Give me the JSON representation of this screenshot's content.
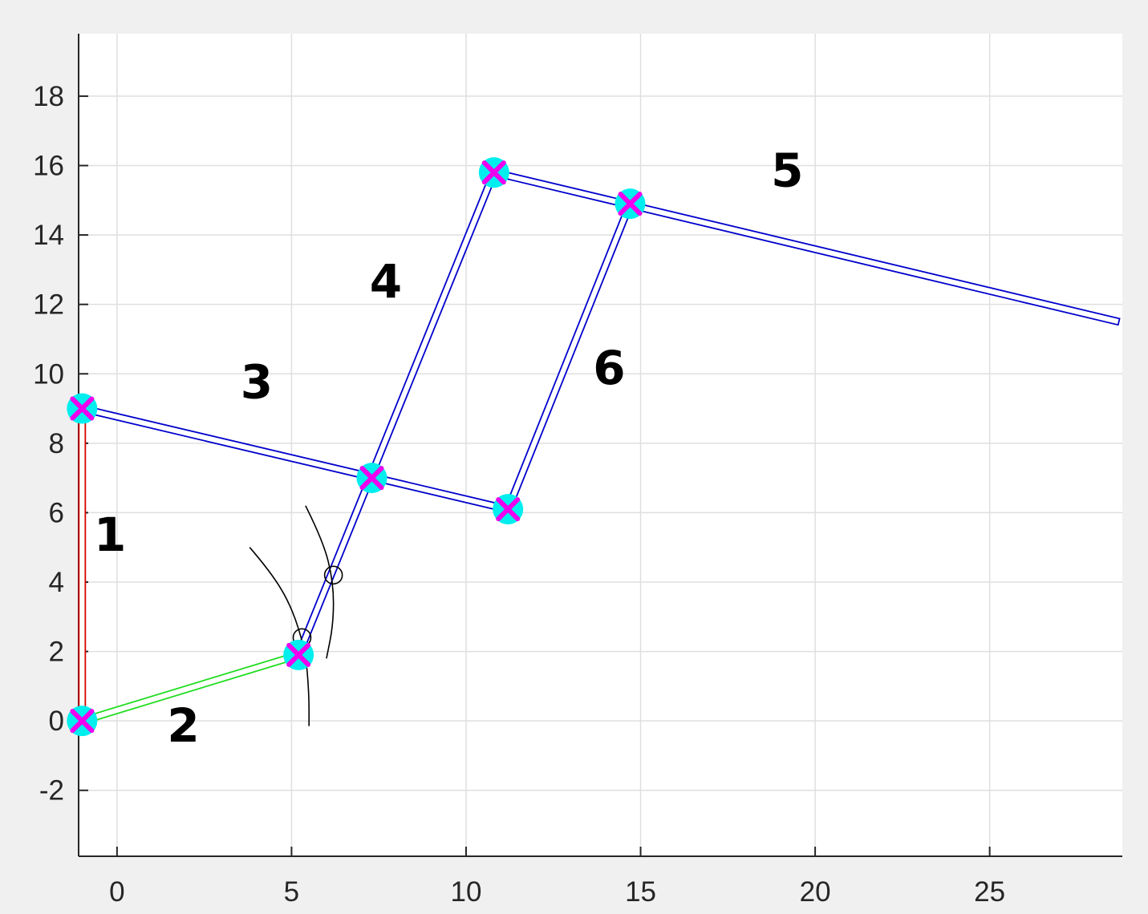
{
  "chart_data": {
    "type": "scatter",
    "title": "",
    "xlabel": "",
    "ylabel": "",
    "xlim": [
      -1.1,
      28.8
    ],
    "ylim": [
      -3.9,
      19.8
    ],
    "x_ticks": [
      0,
      5,
      10,
      15,
      20,
      25
    ],
    "y_ticks": [
      -2,
      0,
      2,
      4,
      6,
      8,
      10,
      12,
      14,
      16,
      18
    ],
    "grid": true,
    "joints": [
      {
        "x": -1.0,
        "y": 0.0
      },
      {
        "x": -1.0,
        "y": 9.0
      },
      {
        "x": 5.2,
        "y": 1.9
      },
      {
        "x": 7.3,
        "y": 7.0
      },
      {
        "x": 11.2,
        "y": 6.1
      },
      {
        "x": 10.8,
        "y": 15.8
      },
      {
        "x": 14.7,
        "y": 14.9
      }
    ],
    "links": [
      {
        "label": "1",
        "color": "#d40000",
        "from": [
          -1.0,
          0.0
        ],
        "to": [
          -1.0,
          9.0
        ],
        "label_at": [
          -0.2,
          4.9
        ]
      },
      {
        "label": "2",
        "color": "#22dd22",
        "from": [
          -1.0,
          0.0
        ],
        "to": [
          5.2,
          1.9
        ],
        "label_at": [
          1.9,
          -0.6
        ]
      },
      {
        "label": "3",
        "color": "#0000cc",
        "from": [
          -1.0,
          9.0
        ],
        "to": [
          11.2,
          6.1
        ],
        "label_at": [
          4.0,
          9.3
        ]
      },
      {
        "label": "4",
        "color": "#0000cc",
        "from": [
          5.2,
          1.9
        ],
        "to": [
          10.8,
          15.8
        ],
        "label_at": [
          7.7,
          12.2
        ]
      },
      {
        "label": "5",
        "color": "#0000cc",
        "from": [
          10.8,
          15.8
        ],
        "to": [
          28.7,
          11.5
        ],
        "label_at": [
          19.2,
          15.4
        ]
      },
      {
        "label": "6",
        "color": "#0000cc",
        "from": [
          11.2,
          6.1
        ],
        "to": [
          14.7,
          14.9
        ],
        "label_at": [
          14.1,
          9.7
        ]
      }
    ],
    "circles": [
      {
        "x": 5.3,
        "y": 2.4
      },
      {
        "x": 6.2,
        "y": 4.2
      }
    ],
    "arcs": [
      [
        [
          3.8,
          5.0
        ],
        [
          4.4,
          4.3
        ],
        [
          5.0,
          3.3
        ],
        [
          5.4,
          2.0
        ],
        [
          5.5,
          0.8
        ],
        [
          5.5,
          -0.15
        ]
      ],
      [
        [
          5.4,
          6.2
        ],
        [
          5.9,
          5.2
        ],
        [
          6.2,
          4.0
        ],
        [
          6.2,
          2.8
        ],
        [
          6.0,
          1.8
        ]
      ]
    ],
    "colors": {
      "joint_fill": "#00eeee",
      "joint_mark": "#ee00ee",
      "sketch": "#000000",
      "grid": "#dfdfdf",
      "axis": "#262626",
      "plot_bg": "#ffffff",
      "figure_bg": "#f0f0f0"
    }
  }
}
